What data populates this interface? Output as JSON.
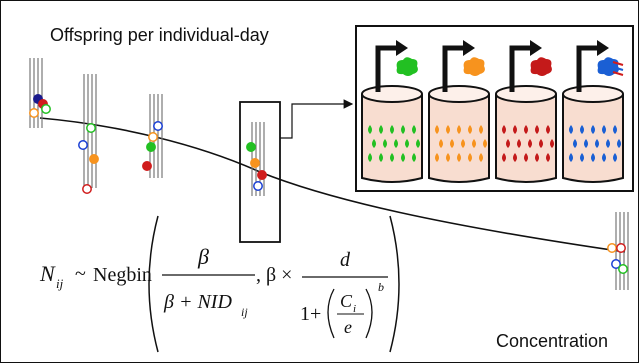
{
  "labels": {
    "y_axis": "Offspring per individual-day",
    "x_axis": "Concentration"
  },
  "formula": {
    "lhs_symbol": "N",
    "lhs_subscript": "ij",
    "tilde": "~",
    "distribution": "Negbin",
    "param1_numerator": "β",
    "param1_denominator": "β + NID",
    "param1_den_subscript": "ij",
    "separator": ", β ×",
    "param2_numerator": "d",
    "param2_den_prefix": "1+",
    "ratio_numerator": "C",
    "ratio_numerator_subscript": "i",
    "ratio_denominator": "e",
    "exponent": "b"
  },
  "colors": {
    "green": "#22c022",
    "orange": "#f7931e",
    "red": "#d01c1c",
    "blue": "#1a3fd4",
    "navy": "#1a1a8c",
    "outline": "#111111",
    "beaker_fill": "#f8ddd0"
  },
  "beakers": [
    {
      "name": "green-beaker",
      "color": "#22c022"
    },
    {
      "name": "orange-beaker",
      "color": "#f7931e"
    },
    {
      "name": "red-beaker",
      "color": "#c41a1a"
    },
    {
      "name": "blue-beaker",
      "color": "#1a5fd4"
    }
  ]
}
